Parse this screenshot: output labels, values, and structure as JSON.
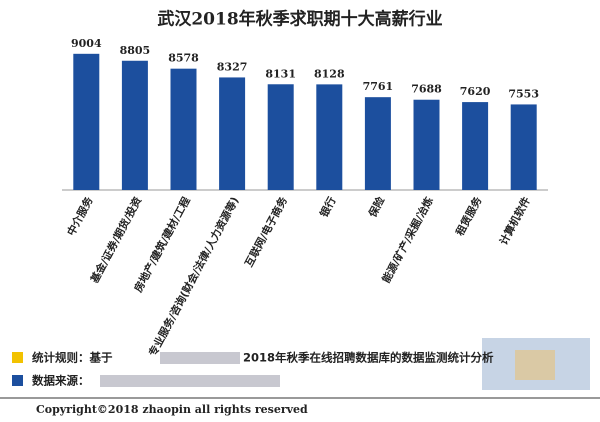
{
  "chart_data": {
    "type": "bar",
    "title": "武汉2018年秋季求职期十大高薪行业",
    "categories": [
      "中介服务",
      "基金/证券/期货/投资",
      "房地产/建筑/建材/工程",
      "专业服务/咨询(财会/法律/人力资源等)",
      "互联网/电子商务",
      "银行",
      "保险",
      "能源/矿产/采掘/冶炼",
      "租赁服务",
      "计算机软件"
    ],
    "values": [
      9004,
      8805,
      8578,
      8327,
      8131,
      8128,
      7761,
      7688,
      7620,
      7553
    ],
    "color": "#1c4f9e",
    "ylim": [
      5100,
      9400
    ],
    "notes": {
      "rule_label": "统计规则：基于",
      "rule_text": "2018年秋季在线招聘数据库的数据监测统计分析",
      "source_label": "数据来源：",
      "rule_color": "#f2c200",
      "source_color": "#1c4f9e"
    },
    "copyright": "Copyright©2018 zhaopin all rights reserved"
  }
}
